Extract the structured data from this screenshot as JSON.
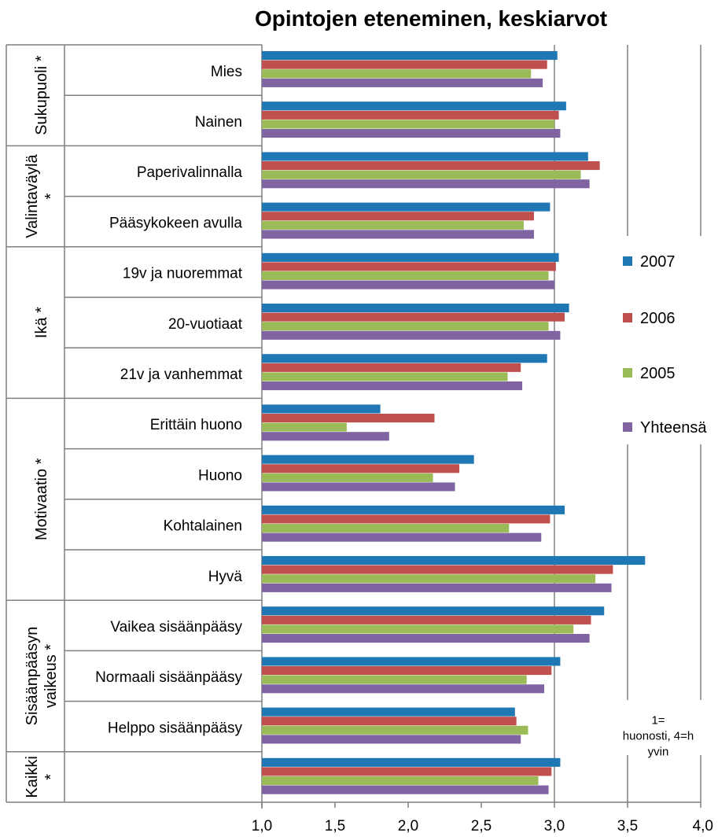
{
  "chart_data": {
    "type": "bar",
    "orientation": "horizontal",
    "title": "Opintojen eteneminen, keskiarvot",
    "xlim": [
      1.0,
      4.0
    ],
    "xticks": [
      "1,0",
      "1,5",
      "2,0",
      "2,5",
      "3,0",
      "3,5",
      "4,0"
    ],
    "grid": true,
    "legend_position": "right",
    "categories": [
      "Mies",
      "Nainen",
      "Paperivalinnalla",
      "Pääsykokeen avulla",
      "19v ja nuoremmat",
      "20-vuotiaat",
      "21v ja vanhemmat",
      "Erittäin huono",
      "Huono",
      "Kohtalainen",
      "Hyvä",
      "Vaikea sisäänpääsy",
      "Normaali sisäänpääsy",
      "Helppo sisäänpääsy",
      ""
    ],
    "groups": [
      {
        "label": [
          "Sukupuoli *"
        ],
        "size": 2
      },
      {
        "label": [
          "Valintaväylä",
          "*"
        ],
        "size": 2
      },
      {
        "label": [
          "Ikä *"
        ],
        "size": 3
      },
      {
        "label": [
          "Motivaatio *"
        ],
        "size": 4
      },
      {
        "label": [
          "Sisäänpääsyn",
          "vaikeus *"
        ],
        "size": 3
      },
      {
        "label": [
          "Kaikki",
          "*"
        ],
        "size": 1
      }
    ],
    "series": [
      {
        "name": "2007",
        "color": "#1f77b4",
        "values": [
          3.02,
          3.08,
          3.23,
          2.97,
          3.03,
          3.1,
          2.95,
          1.81,
          2.45,
          3.07,
          3.62,
          3.34,
          3.04,
          2.73,
          3.04
        ]
      },
      {
        "name": "2006",
        "color": "#c0504d",
        "values": [
          2.95,
          3.03,
          3.31,
          2.86,
          3.01,
          3.07,
          2.77,
          2.18,
          2.35,
          2.97,
          3.4,
          3.25,
          2.98,
          2.74,
          2.98
        ]
      },
      {
        "name": "2005",
        "color": "#9bbb59",
        "values": [
          2.84,
          3.0,
          3.18,
          2.79,
          2.96,
          2.96,
          2.68,
          1.58,
          2.17,
          2.69,
          3.28,
          3.13,
          2.81,
          2.82,
          2.89
        ]
      },
      {
        "name": "Yhteensä",
        "color": "#8064a2",
        "values": [
          2.92,
          3.04,
          3.24,
          2.86,
          3.0,
          3.04,
          2.78,
          1.87,
          2.32,
          2.91,
          3.39,
          3.24,
          2.93,
          2.77,
          2.96
        ]
      }
    ],
    "annotation": [
      "1=",
      "huonosti, 4=h",
      "yvin"
    ]
  }
}
